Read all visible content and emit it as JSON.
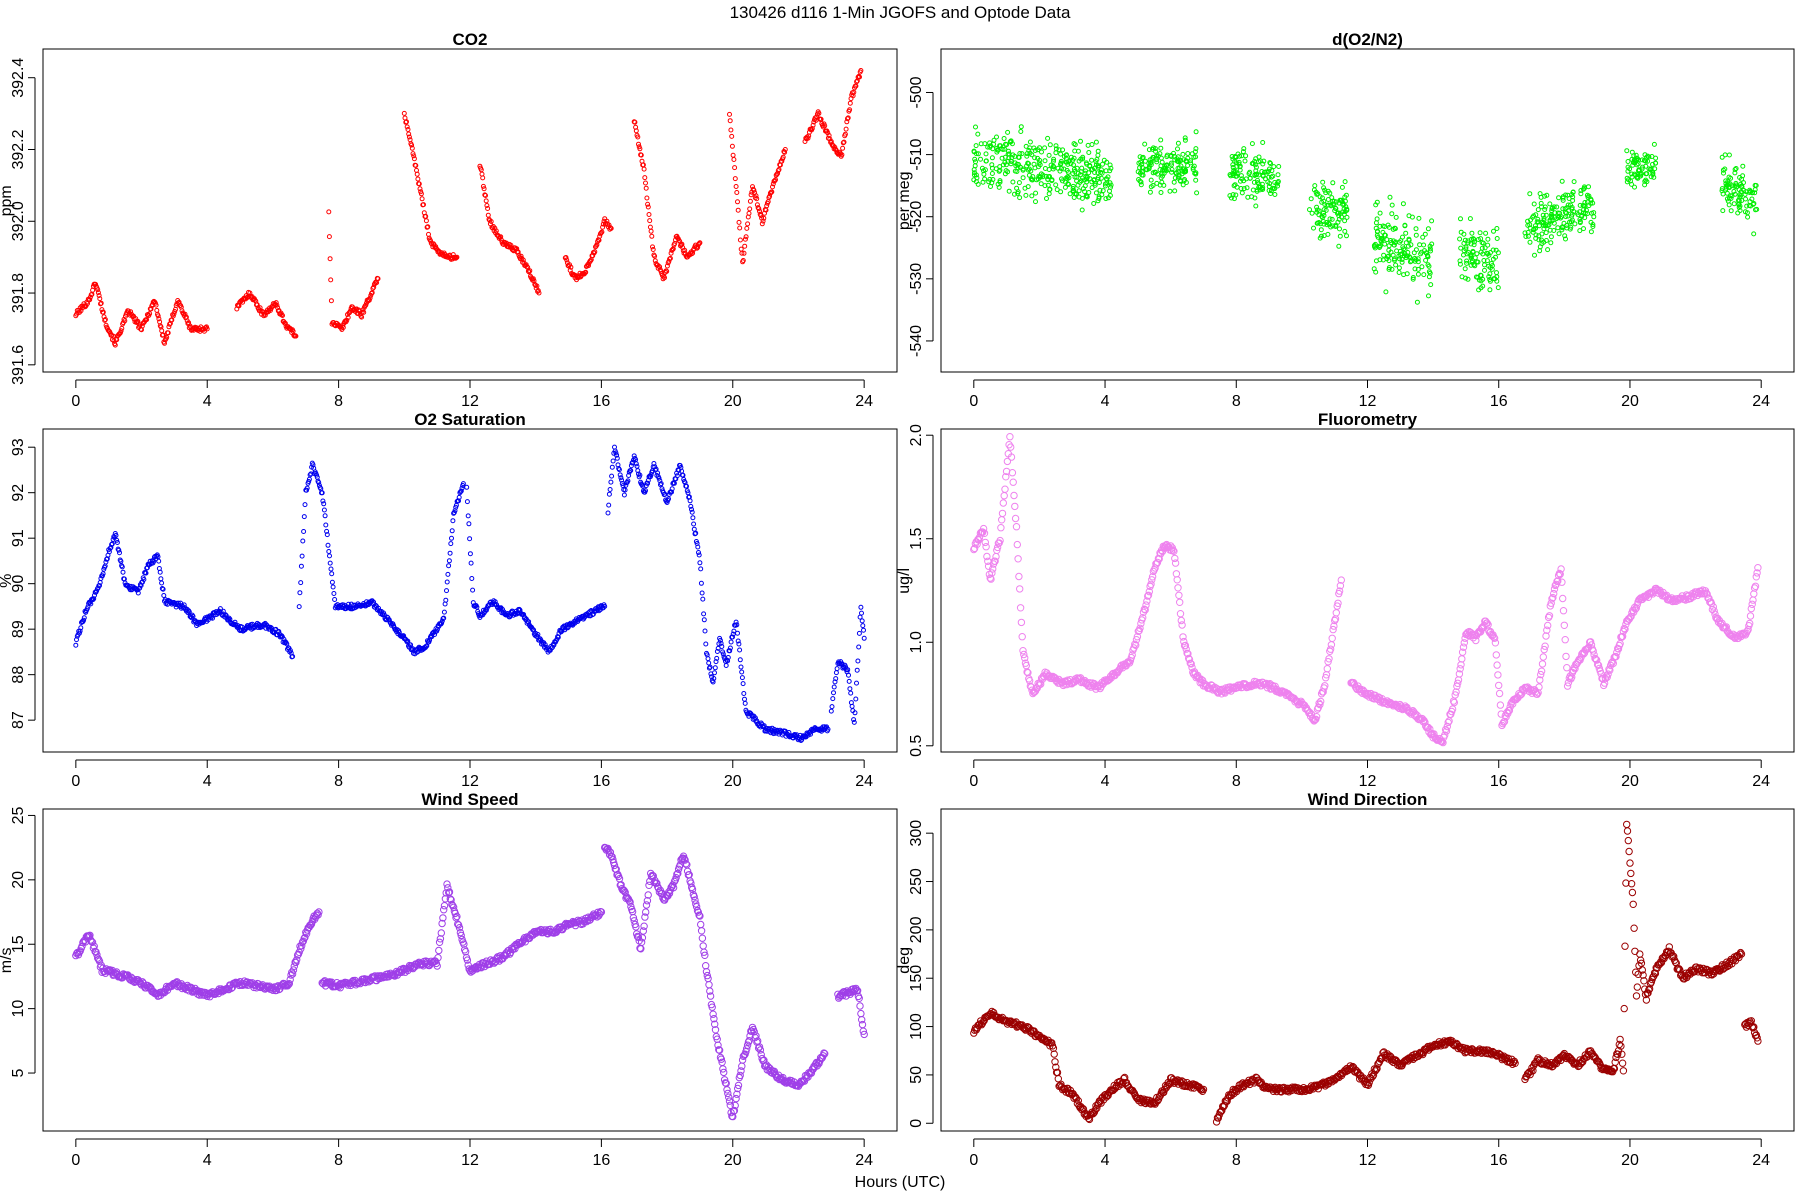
{
  "figure": {
    "title": "130426   d116   1-Min  JGOFS and Optode Data",
    "xlabel": "Hours (UTC)"
  },
  "chart_data": [
    {
      "type": "scatter",
      "title": "CO2",
      "xlabel": "",
      "ylabel": "ppm",
      "xlim": [
        -1,
        25
      ],
      "ylim": [
        391.58,
        392.48
      ],
      "xticks": [
        0,
        4,
        8,
        12,
        16,
        20,
        24
      ],
      "yticks": [
        391.6,
        391.8,
        392.0,
        392.2,
        392.4
      ],
      "ytick_labels": [
        "391.6",
        "391.8",
        "392.0",
        "392.2",
        "392.4"
      ],
      "marker": "circle-open",
      "color": "#ff0000",
      "marker_size": "small",
      "grid": false,
      "segments": [
        {
          "x": [
            0.0,
            0.4,
            0.6,
            0.9,
            1.2,
            1.6,
            2.0,
            2.4,
            2.7,
            3.1,
            3.5,
            4.0
          ],
          "y": [
            391.74,
            391.78,
            391.83,
            391.72,
            391.66,
            391.75,
            391.7,
            391.78,
            391.66,
            391.78,
            391.7,
            391.7
          ]
        },
        {
          "x": [
            4.9,
            5.3,
            5.7,
            6.1,
            6.4,
            6.7
          ],
          "y": [
            391.76,
            391.8,
            391.74,
            391.77,
            391.71,
            391.68
          ]
        },
        {
          "x": [
            7.7,
            7.8,
            8.1,
            8.4,
            8.7,
            9.0,
            9.2
          ],
          "y": [
            392.02,
            391.72,
            391.7,
            391.76,
            391.74,
            391.8,
            391.84
          ]
        },
        {
          "x": [
            10.0,
            10.2,
            10.5,
            10.8,
            11.0,
            11.3,
            11.6
          ],
          "y": [
            392.3,
            392.22,
            392.08,
            391.94,
            391.92,
            391.9,
            391.9
          ]
        },
        {
          "x": [
            12.3,
            12.6,
            13.0,
            13.4,
            13.8,
            14.1
          ],
          "y": [
            392.16,
            392.0,
            391.94,
            391.92,
            391.86,
            391.8
          ]
        },
        {
          "x": [
            14.9,
            15.2,
            15.5,
            15.8,
            16.1,
            16.3
          ],
          "y": [
            391.9,
            391.84,
            391.86,
            391.92,
            392.0,
            391.98
          ]
        },
        {
          "x": [
            17.0,
            17.3,
            17.6,
            17.9,
            18.3,
            18.6,
            19.0
          ],
          "y": [
            392.28,
            392.14,
            391.9,
            391.84,
            391.96,
            391.9,
            391.94
          ]
        },
        {
          "x": [
            19.9,
            20.1,
            20.3,
            20.6,
            20.9,
            21.3,
            21.6
          ],
          "y": [
            392.3,
            392.1,
            391.88,
            392.1,
            392.0,
            392.12,
            392.2
          ]
        },
        {
          "x": [
            22.2,
            22.6,
            23.0,
            23.3,
            23.6,
            23.9
          ],
          "y": [
            392.22,
            392.3,
            392.22,
            392.18,
            392.34,
            392.42
          ]
        }
      ]
    },
    {
      "type": "scatter",
      "title": "d(O2/N2)",
      "xlabel": "",
      "ylabel": "per meg",
      "xlim": [
        -1,
        25
      ],
      "ylim": [
        -545,
        -493
      ],
      "xticks": [
        0,
        4,
        8,
        12,
        16,
        20,
        24
      ],
      "yticks": [
        -540,
        -530,
        -520,
        -510,
        -500
      ],
      "ytick_labels": [
        "-540",
        "-530",
        "-520",
        "-510",
        "-500"
      ],
      "marker": "circle-open",
      "color": "#00ee00",
      "marker_size": "small",
      "grid": false,
      "segments": [
        {
          "x": [
            0.0,
            4.2
          ],
          "center": [
            -510,
            -514
          ],
          "spread": 7
        },
        {
          "x": [
            5.0,
            6.8
          ],
          "center": [
            -512,
            -512
          ],
          "spread": 6
        },
        {
          "x": [
            7.8,
            9.3
          ],
          "center": [
            -513,
            -514
          ],
          "spread": 6
        },
        {
          "x": [
            10.2,
            11.4
          ],
          "center": [
            -518,
            -520
          ],
          "spread": 8
        },
        {
          "x": [
            12.2,
            14.0
          ],
          "center": [
            -524,
            -527
          ],
          "spread": 9
        },
        {
          "x": [
            14.8,
            16.0
          ],
          "center": [
            -526,
            -528
          ],
          "spread": 8
        },
        {
          "x": [
            16.8,
            18.9
          ],
          "center": [
            -522,
            -518
          ],
          "spread": 6
        },
        {
          "x": [
            19.9,
            20.8
          ],
          "center": [
            -513,
            -512
          ],
          "spread": 5
        },
        {
          "x": [
            22.8,
            23.9
          ],
          "center": [
            -514,
            -518
          ],
          "spread": 6
        }
      ]
    },
    {
      "type": "scatter",
      "title": "O2 Saturation",
      "xlabel": "",
      "ylabel": "%",
      "xlim": [
        -1,
        25
      ],
      "ylim": [
        86.3,
        93.4
      ],
      "xticks": [
        0,
        4,
        8,
        12,
        16,
        20,
        24
      ],
      "yticks": [
        87,
        88,
        89,
        90,
        91,
        92,
        93
      ],
      "ytick_labels": [
        "87",
        "88",
        "89",
        "90",
        "91",
        "92",
        "93"
      ],
      "marker": "circle-open",
      "color": "#0000ee",
      "marker_size": "small",
      "grid": false,
      "segments": [
        {
          "x": [
            0.0,
            0.3,
            0.7,
            1.0,
            1.2,
            1.5,
            1.9,
            2.2,
            2.5,
            2.7,
            3.3,
            3.7,
            4.4,
            5.0,
            5.7,
            6.2,
            6.6
          ],
          "y": [
            88.7,
            89.4,
            89.9,
            90.7,
            91.1,
            90.0,
            89.8,
            90.4,
            90.6,
            89.6,
            89.5,
            89.1,
            89.4,
            89.0,
            89.1,
            88.9,
            88.4
          ]
        },
        {
          "x": [
            6.8,
            7.0,
            7.2,
            7.5,
            7.9,
            8.5,
            9.0,
            9.5,
            10.0,
            10.3,
            10.6,
            10.9,
            11.2,
            11.5,
            11.8
          ],
          "y": [
            89.5,
            92.0,
            92.6,
            92.0,
            89.5,
            89.5,
            89.6,
            89.2,
            88.8,
            88.5,
            88.6,
            88.9,
            89.2,
            91.5,
            92.2
          ]
        },
        {
          "x": [
            11.9,
            12.1,
            12.3,
            12.7,
            13.1,
            13.5,
            14.0,
            14.4,
            14.8,
            15.3,
            15.8,
            16.1
          ],
          "y": [
            92.1,
            89.6,
            89.3,
            89.6,
            89.3,
            89.4,
            88.9,
            88.5,
            89.0,
            89.2,
            89.4,
            89.5
          ]
        },
        {
          "x": [
            16.2,
            16.4,
            16.7,
            17.0,
            17.3,
            17.6,
            18.0,
            18.4,
            18.7,
            19.0,
            19.2,
            19.4,
            19.6,
            19.8,
            20.1,
            20.4,
            21.0,
            21.6,
            22.1,
            22.5,
            22.9
          ],
          "y": [
            91.6,
            93.0,
            92.0,
            92.8,
            92.0,
            92.6,
            91.8,
            92.6,
            91.8,
            90.5,
            88.5,
            87.8,
            88.8,
            88.2,
            89.2,
            87.2,
            86.8,
            86.7,
            86.6,
            86.8,
            86.8
          ]
        },
        {
          "x": [
            23.0,
            23.2,
            23.5,
            23.7,
            23.9,
            24.0
          ],
          "y": [
            87.2,
            88.3,
            88.1,
            86.9,
            89.5,
            88.8
          ]
        }
      ]
    },
    {
      "type": "scatter",
      "title": "Fluorometry",
      "xlabel": "",
      "ylabel": "ug/l",
      "xlim": [
        -1,
        25
      ],
      "ylim": [
        0.47,
        2.03
      ],
      "xticks": [
        0,
        4,
        8,
        12,
        16,
        20,
        24
      ],
      "yticks": [
        0.5,
        1.0,
        1.5,
        2.0
      ],
      "ytick_labels": [
        "0.5",
        "1.0",
        "1.5",
        "2.0"
      ],
      "marker": "circle-open",
      "color": "#ee82ee",
      "marker_size": "medium",
      "grid": false,
      "segments": [
        {
          "x": [
            0.0,
            0.3,
            0.5,
            0.8,
            1.1,
            1.3,
            1.5,
            1.8,
            2.2,
            2.7,
            3.2,
            3.8,
            4.3,
            4.8,
            5.2,
            5.5,
            5.8,
            6.1,
            6.4,
            6.7,
            7.0,
            7.5,
            8.0,
            8.5,
            9.0,
            9.5,
            10.0,
            10.4,
            10.7,
            11.0,
            11.2
          ],
          "y": [
            1.45,
            1.55,
            1.3,
            1.5,
            2.0,
            1.55,
            0.95,
            0.75,
            0.85,
            0.8,
            0.82,
            0.78,
            0.85,
            0.92,
            1.15,
            1.35,
            1.47,
            1.45,
            1.0,
            0.85,
            0.8,
            0.76,
            0.78,
            0.8,
            0.79,
            0.75,
            0.7,
            0.62,
            0.8,
            1.1,
            1.3
          ]
        },
        {
          "x": [
            11.5,
            12.0,
            12.6,
            13.2,
            13.7,
            14.0,
            14.3,
            14.7,
            15.0,
            15.3,
            15.6,
            15.9,
            16.1,
            16.4,
            16.8,
            17.2,
            17.6,
            17.9,
            18.1,
            18.4,
            18.8,
            19.2,
            19.6,
            19.9,
            20.3,
            20.8,
            21.3,
            21.8,
            22.3,
            22.7,
            23.2,
            23.6,
            23.9
          ],
          "y": [
            0.8,
            0.75,
            0.71,
            0.68,
            0.62,
            0.55,
            0.52,
            0.75,
            1.05,
            1.02,
            1.1,
            1.0,
            0.6,
            0.7,
            0.78,
            0.75,
            1.2,
            1.35,
            0.8,
            0.9,
            1.0,
            0.8,
            0.95,
            1.1,
            1.2,
            1.25,
            1.2,
            1.22,
            1.25,
            1.1,
            1.02,
            1.05,
            1.36
          ]
        }
      ]
    },
    {
      "type": "scatter",
      "title": "Wind Speed",
      "xlabel": "",
      "ylabel": "m/s",
      "xlim": [
        -1,
        25
      ],
      "ylim": [
        0.5,
        25.5
      ],
      "xticks": [
        0,
        4,
        8,
        12,
        16,
        20,
        24
      ],
      "yticks": [
        5,
        10,
        15,
        20,
        25
      ],
      "ytick_labels": [
        "5",
        "10",
        "15",
        "20",
        "25"
      ],
      "marker": "circle-open",
      "color": "#9f3fe8",
      "marker_size": "medium",
      "grid": false,
      "segments": [
        {
          "x": [
            0.0,
            0.4,
            0.8,
            1.5,
            2.0,
            2.5,
            3.0,
            3.5,
            4.0,
            4.5,
            5.0,
            5.5,
            6.0,
            6.5,
            6.8,
            7.1,
            7.4
          ],
          "y": [
            14.0,
            15.8,
            13.0,
            12.5,
            12.0,
            11.0,
            12.0,
            11.5,
            11.0,
            11.5,
            12.0,
            11.8,
            11.5,
            12.0,
            14.5,
            16.5,
            17.5
          ]
        },
        {
          "x": [
            7.5,
            8.0,
            8.5,
            9.0,
            9.5,
            10.0,
            10.5,
            11.0,
            11.3,
            11.6,
            12.0,
            12.5,
            13.0,
            13.5,
            14.0,
            14.5,
            15.0,
            15.5,
            16.0
          ],
          "y": [
            12.0,
            11.8,
            12.0,
            12.3,
            12.5,
            13.0,
            13.5,
            13.5,
            19.5,
            17.0,
            13.0,
            13.5,
            14.0,
            15.0,
            16.0,
            16.0,
            16.5,
            16.8,
            17.5
          ]
        },
        {
          "x": [
            16.1,
            16.3,
            16.6,
            16.9,
            17.2,
            17.5,
            17.9,
            18.2,
            18.5,
            18.8,
            19.0,
            19.2,
            19.5,
            19.8,
            20.0,
            20.3,
            20.6,
            21.0,
            21.5,
            22.0,
            22.5,
            22.8
          ],
          "y": [
            22.5,
            22.0,
            19.5,
            18.0,
            14.5,
            20.5,
            18.5,
            19.5,
            22.0,
            19.0,
            17.0,
            13.0,
            8.0,
            4.0,
            1.5,
            6.0,
            8.5,
            5.5,
            4.5,
            4.0,
            5.5,
            6.5
          ]
        },
        {
          "x": [
            23.2,
            23.5,
            23.8,
            24.0
          ],
          "y": [
            11.0,
            11.2,
            11.5,
            8.0
          ]
        }
      ]
    },
    {
      "type": "scatter",
      "title": "Wind Direction",
      "xlabel": "",
      "ylabel": "deg",
      "xlim": [
        -1,
        25
      ],
      "ylim": [
        -8,
        325
      ],
      "xticks": [
        0,
        4,
        8,
        12,
        16,
        20,
        24
      ],
      "yticks": [
        0,
        50,
        100,
        150,
        200,
        250,
        300
      ],
      "ytick_labels": [
        "0",
        "50",
        "100",
        "150",
        "200",
        "250",
        "300"
      ],
      "marker": "circle-open",
      "color": "#9b0000",
      "marker_size": "medium",
      "grid": false,
      "segments": [
        {
          "x": [
            0.0,
            0.5,
            1.0,
            1.5,
            2.0,
            2.4,
            2.6,
            3.0,
            3.5,
            3.8,
            4.2,
            4.6,
            5.0,
            5.5,
            6.0,
            6.5,
            7.0
          ],
          "y": [
            95,
            115,
            105,
            100,
            90,
            80,
            40,
            30,
            5,
            20,
            35,
            45,
            25,
            20,
            45,
            40,
            35
          ]
        },
        {
          "x": [
            7.4,
            7.8,
            8.2,
            8.6,
            9.0,
            9.5,
            10.0,
            10.5,
            11.0,
            11.5,
            12.0,
            12.5,
            13.0,
            13.5,
            14.0,
            14.5,
            15.0,
            15.5,
            16.0,
            16.5
          ],
          "y": [
            2,
            30,
            40,
            45,
            35,
            35,
            35,
            38,
            45,
            58,
            40,
            72,
            60,
            70,
            80,
            85,
            75,
            75,
            70,
            62
          ]
        },
        {
          "x": [
            16.8,
            17.2,
            17.6,
            18.0,
            18.4,
            18.8,
            19.2,
            19.5,
            19.7,
            19.8,
            19.9,
            20.0,
            20.1,
            20.2,
            20.3,
            20.5,
            20.8,
            21.2,
            21.6,
            22.0,
            22.5,
            23.0,
            23.4
          ],
          "y": [
            45,
            65,
            60,
            70,
            60,
            75,
            55,
            55,
            85,
            55,
            310,
            270,
            225,
            130,
            175,
            130,
            160,
            180,
            150,
            160,
            155,
            165,
            175
          ]
        },
        {
          "x": [
            23.5,
            23.7,
            23.9
          ],
          "y": [
            100,
            105,
            85
          ]
        }
      ]
    }
  ]
}
